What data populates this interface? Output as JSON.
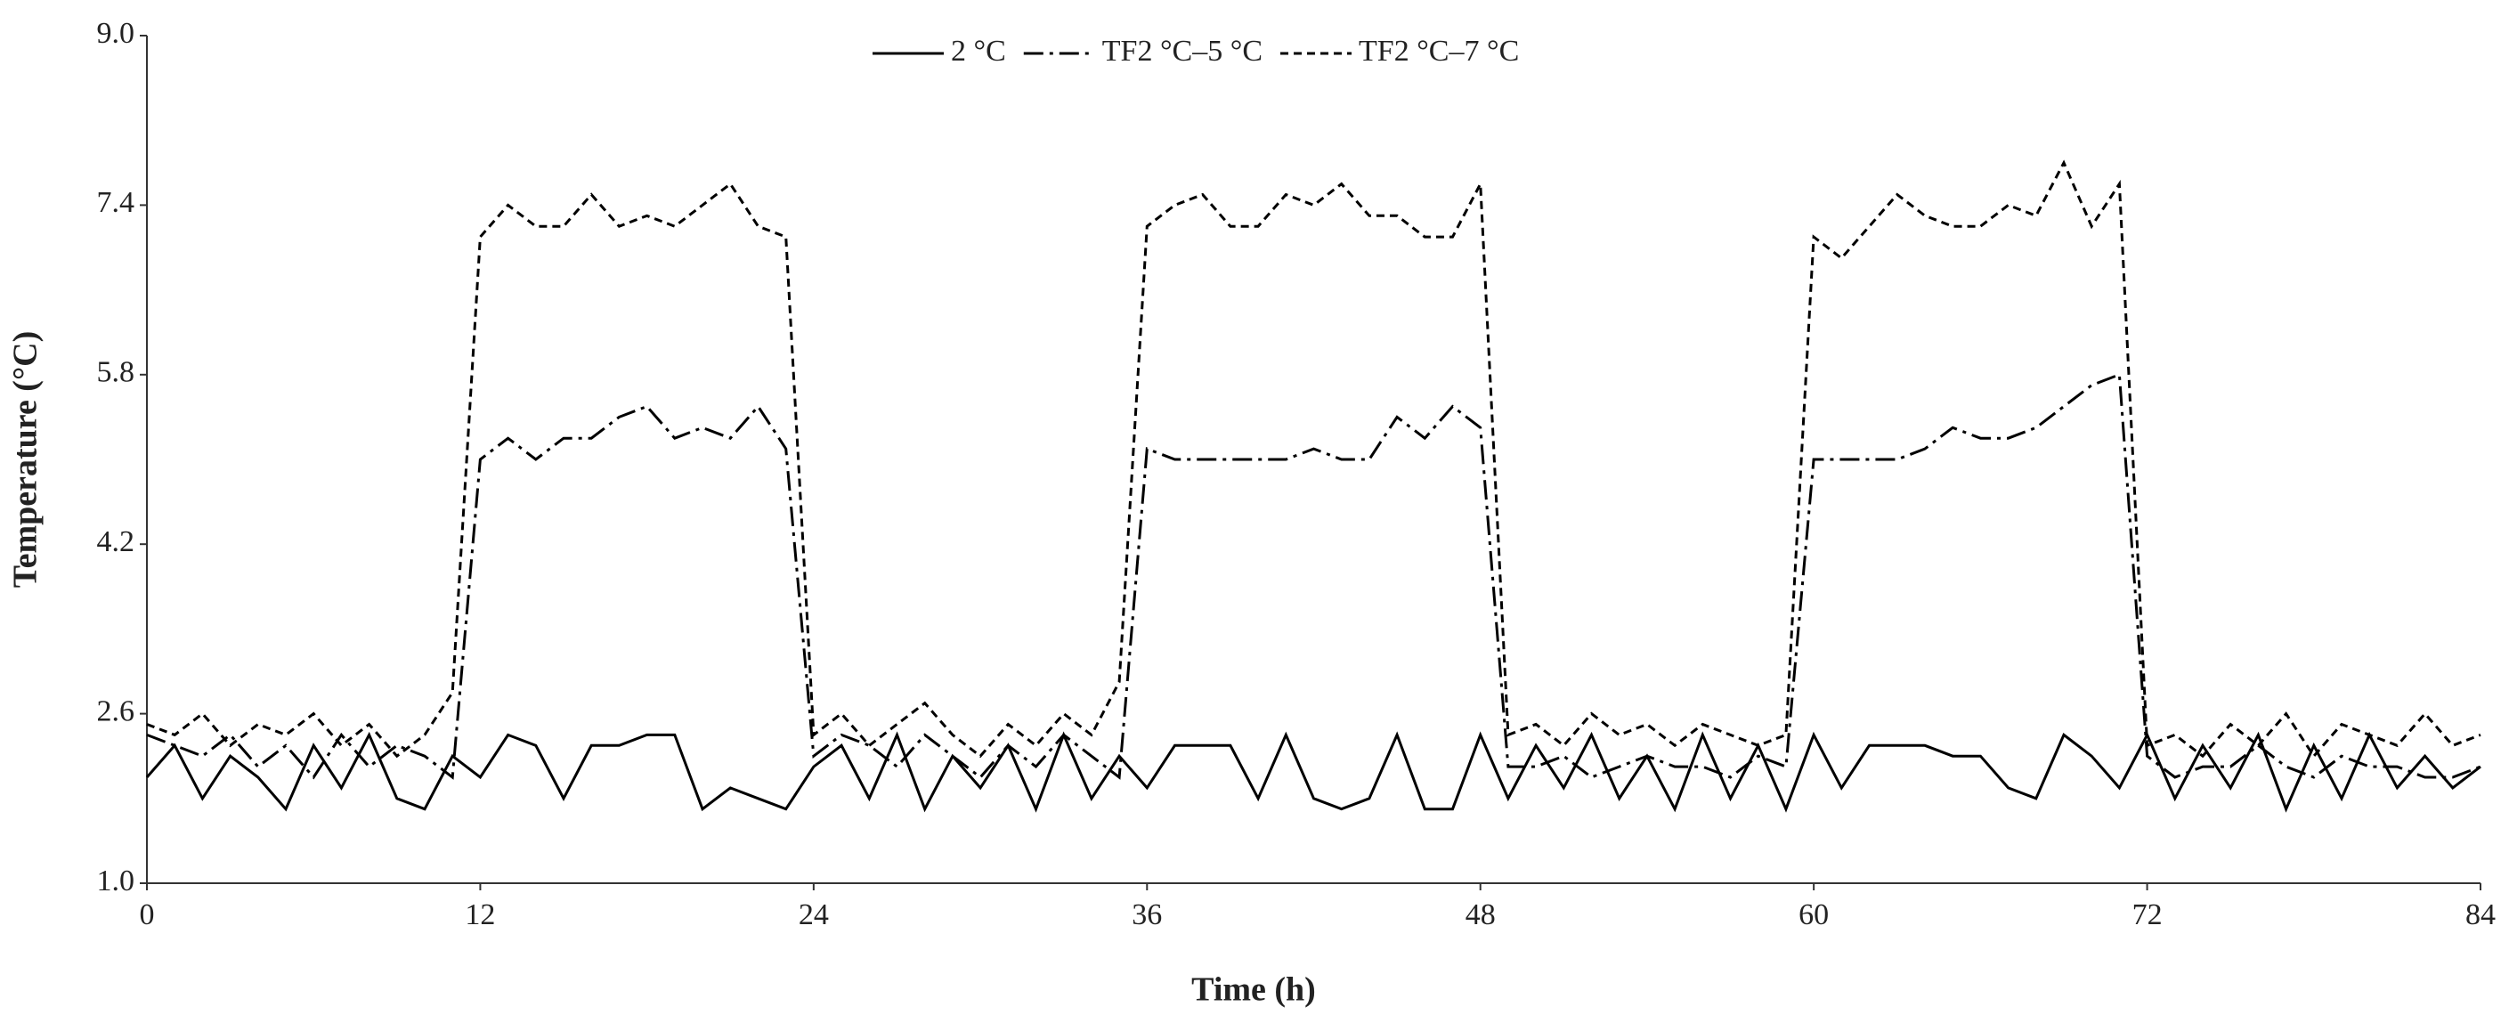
{
  "chart_data": {
    "type": "line",
    "xlabel": "Time (h)",
    "ylabel": "Temperature (°C)",
    "x": [
      0,
      1,
      2,
      3,
      4,
      5,
      6,
      7,
      8,
      9,
      10,
      11,
      12,
      13,
      14,
      15,
      16,
      17,
      18,
      19,
      20,
      21,
      22,
      23,
      24,
      25,
      26,
      27,
      28,
      29,
      30,
      31,
      32,
      33,
      34,
      35,
      36,
      37,
      38,
      39,
      40,
      41,
      42,
      43,
      44,
      45,
      46,
      47,
      48,
      49,
      50,
      51,
      52,
      53,
      54,
      55,
      56,
      57,
      58,
      59,
      60,
      61,
      62,
      63,
      64,
      65,
      66,
      67,
      68,
      69,
      70,
      71,
      72,
      73,
      74,
      75,
      76,
      77,
      78,
      79,
      80,
      81,
      82,
      83,
      84
    ],
    "series": [
      {
        "name": "2 °C",
        "color": "#000000",
        "dash": "solid",
        "values": [
          2.0,
          2.3,
          1.8,
          2.2,
          2.0,
          1.7,
          2.3,
          1.9,
          2.4,
          1.8,
          1.7,
          2.2,
          2.0,
          2.4,
          2.3,
          1.8,
          2.3,
          2.3,
          2.4,
          2.4,
          1.7,
          1.9,
          1.8,
          1.7,
          2.1,
          2.3,
          1.8,
          2.4,
          1.7,
          2.2,
          1.9,
          2.3,
          1.7,
          2.4,
          1.8,
          2.2,
          1.9,
          2.3,
          2.3,
          2.3,
          1.8,
          2.4,
          1.8,
          1.7,
          1.8,
          2.4,
          1.7,
          1.7,
          2.4,
          1.8,
          2.3,
          1.9,
          2.4,
          1.8,
          2.2,
          1.7,
          2.4,
          1.8,
          2.3,
          1.7,
          2.4,
          1.9,
          2.3,
          2.3,
          2.3,
          2.2,
          2.2,
          1.9,
          1.8,
          2.4,
          2.2,
          1.9,
          2.4,
          1.8,
          2.3,
          1.9,
          2.4,
          1.7,
          2.3,
          1.8,
          2.4,
          1.9,
          2.2,
          1.9,
          2.1
        ]
      },
      {
        "name": "TF2 °C–5 °C",
        "color": "#000000",
        "dash": "dashdot",
        "values": [
          2.4,
          2.3,
          2.2,
          2.4,
          2.1,
          2.3,
          2.0,
          2.4,
          2.1,
          2.3,
          2.2,
          2.0,
          5.0,
          5.2,
          5.0,
          5.2,
          5.2,
          5.4,
          5.5,
          5.2,
          5.3,
          5.2,
          5.5,
          5.1,
          2.2,
          2.4,
          2.3,
          2.1,
          2.4,
          2.2,
          2.0,
          2.3,
          2.1,
          2.4,
          2.2,
          2.0,
          5.1,
          5.0,
          5.0,
          5.0,
          5.0,
          5.0,
          5.1,
          5.0,
          5.0,
          5.4,
          5.2,
          5.5,
          5.3,
          2.1,
          2.1,
          2.2,
          2.0,
          2.1,
          2.2,
          2.1,
          2.1,
          2.0,
          2.2,
          2.1,
          5.0,
          5.0,
          5.0,
          5.0,
          5.1,
          5.3,
          5.2,
          5.2,
          5.3,
          5.5,
          5.7,
          5.8,
          2.2,
          2.0,
          2.1,
          2.1,
          2.3,
          2.1,
          2.0,
          2.2,
          2.1,
          2.1,
          2.0,
          2.0,
          2.1
        ]
      },
      {
        "name": "TF2 °C–7 °C",
        "color": "#000000",
        "dash": "dashed",
        "values": [
          2.5,
          2.4,
          2.6,
          2.3,
          2.5,
          2.4,
          2.6,
          2.3,
          2.5,
          2.2,
          2.4,
          2.8,
          7.1,
          7.4,
          7.2,
          7.2,
          7.5,
          7.2,
          7.3,
          7.2,
          7.4,
          7.6,
          7.2,
          7.1,
          2.4,
          2.6,
          2.3,
          2.5,
          2.7,
          2.4,
          2.2,
          2.5,
          2.3,
          2.6,
          2.4,
          2.9,
          7.2,
          7.4,
          7.5,
          7.2,
          7.2,
          7.5,
          7.4,
          7.6,
          7.3,
          7.3,
          7.1,
          7.1,
          7.6,
          2.4,
          2.5,
          2.3,
          2.6,
          2.4,
          2.5,
          2.3,
          2.5,
          2.4,
          2.3,
          2.4,
          7.1,
          6.9,
          7.2,
          7.5,
          7.3,
          7.2,
          7.2,
          7.4,
          7.3,
          7.8,
          7.2,
          7.6,
          2.3,
          2.4,
          2.2,
          2.5,
          2.3,
          2.6,
          2.2,
          2.5,
          2.4,
          2.3,
          2.6,
          2.3,
          2.4
        ]
      }
    ],
    "xlim": [
      0,
      84
    ],
    "xticks": [
      0,
      12,
      24,
      36,
      48,
      60,
      72,
      84
    ],
    "ylim": [
      1.0,
      9.0
    ],
    "yticks": [
      {
        "value": 1.0,
        "label": "1.0"
      },
      2.6,
      4.2,
      5.8,
      7.4,
      {
        "value": 9.0,
        "label": "9.0"
      }
    ],
    "legend": "top"
  }
}
